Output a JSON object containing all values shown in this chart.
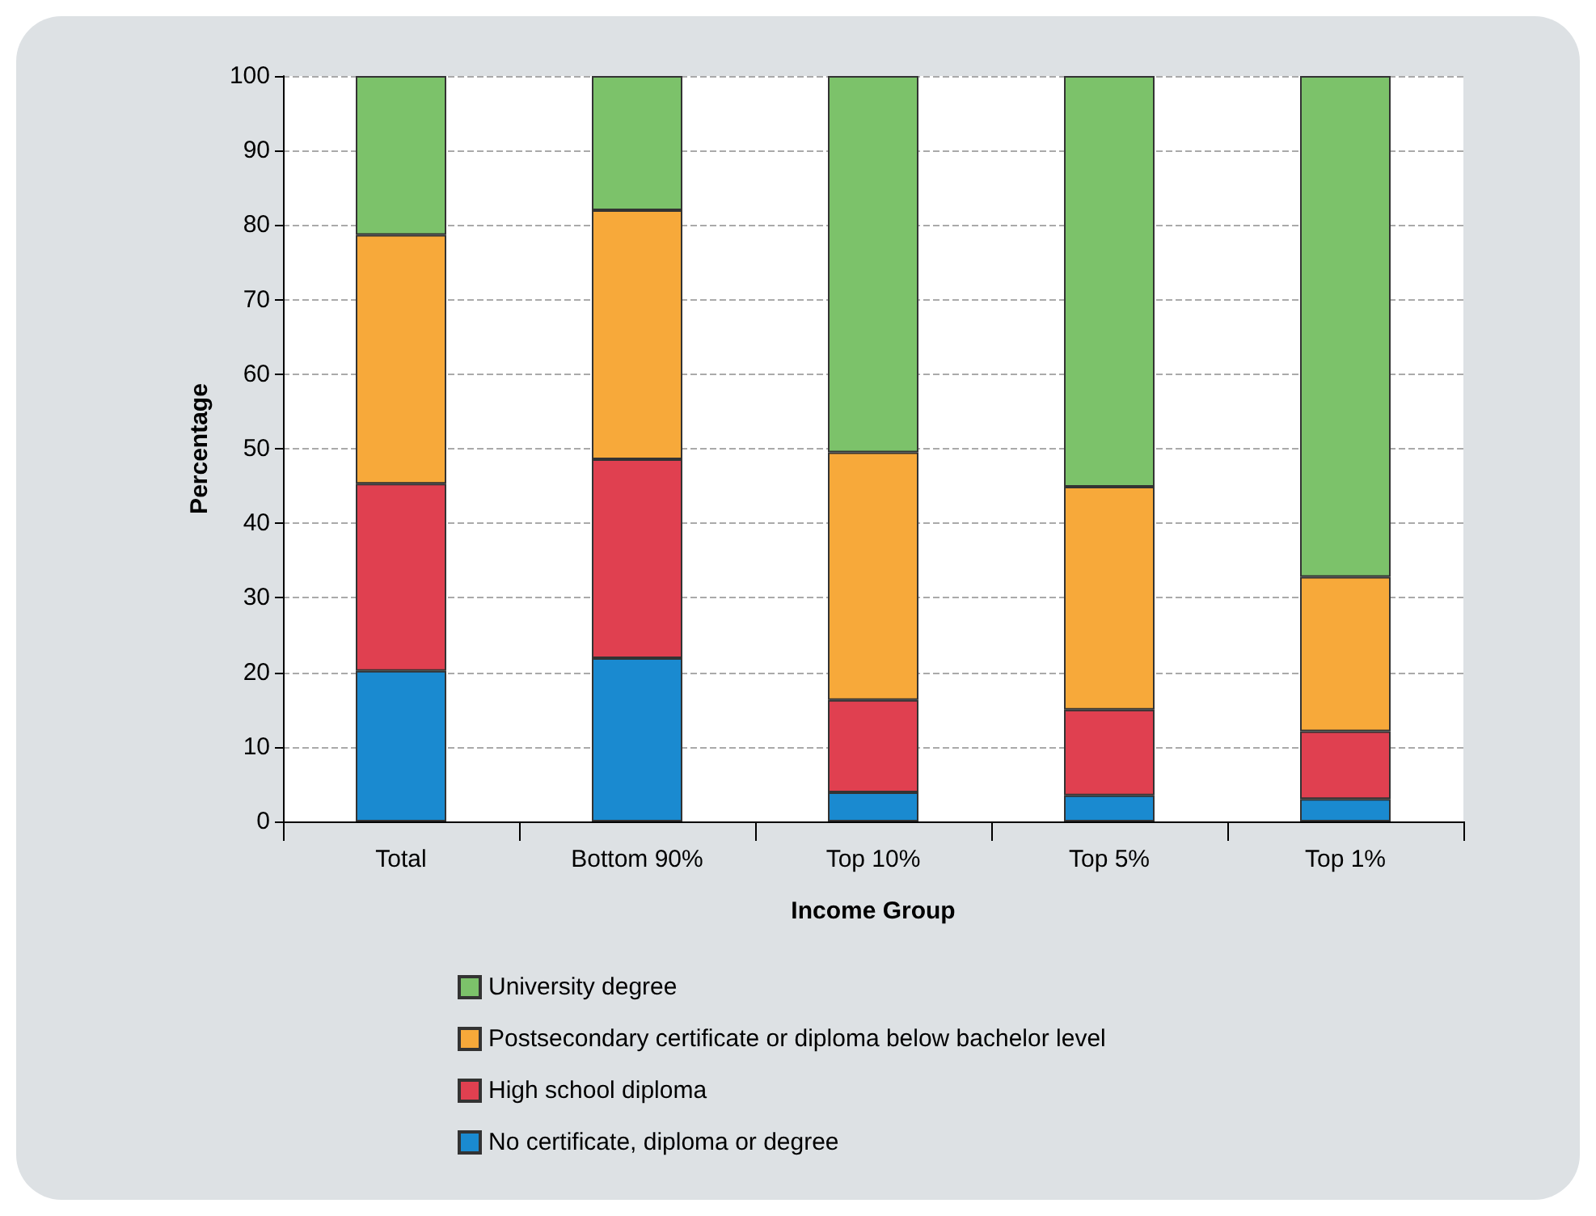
{
  "chart_data": {
    "type": "bar",
    "stacked": true,
    "xlabel": "Income Group",
    "ylabel": "Percentage",
    "categories": [
      "Total",
      "Bottom 90%",
      "Top 10%",
      "Top 5%",
      "Top 1%"
    ],
    "series": [
      {
        "name": "No certificate, diploma or degree",
        "color": "#1a8ad0",
        "values": [
          20.2,
          21.9,
          3.9,
          3.5,
          3.0
        ]
      },
      {
        "name": "High school diploma",
        "color": "#e04050",
        "values": [
          25.1,
          26.7,
          12.4,
          11.5,
          9.1
        ]
      },
      {
        "name": "Postsecondary certificate or diploma below bachelor level",
        "color": "#f7a93a",
        "values": [
          33.4,
          33.4,
          33.2,
          29.9,
          20.7
        ]
      },
      {
        "name": "University degree",
        "color": "#7cc26a",
        "values": [
          21.3,
          18.0,
          50.5,
          55.1,
          67.2
        ]
      }
    ],
    "ylim": [
      0,
      100
    ],
    "yticks": [
      0,
      10,
      20,
      30,
      40,
      50,
      60,
      70,
      80,
      90,
      100
    ],
    "grid": "y",
    "legend": "bottom"
  }
}
